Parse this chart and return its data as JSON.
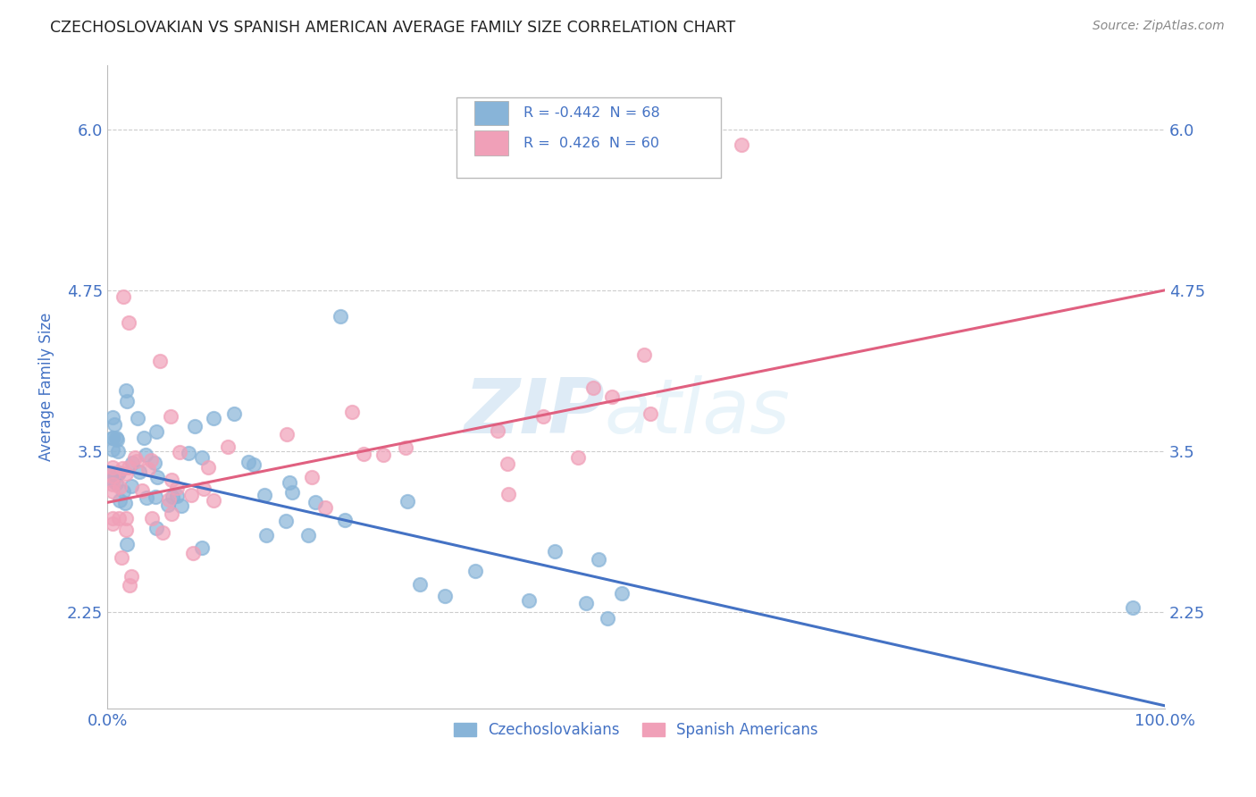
{
  "title": "CZECHOSLOVAKIAN VS SPANISH AMERICAN AVERAGE FAMILY SIZE CORRELATION CHART",
  "source": "Source: ZipAtlas.com",
  "ylabel": "Average Family Size",
  "xlabel": "",
  "xlim": [
    0.0,
    100.0
  ],
  "ylim": [
    1.5,
    6.5
  ],
  "yticks": [
    2.25,
    3.5,
    4.75,
    6.0
  ],
  "xticks": [
    0.0,
    100.0
  ],
  "xticklabels": [
    "0.0%",
    "100.0%"
  ],
  "blue_R": -0.442,
  "blue_N": 68,
  "pink_R": 0.426,
  "pink_N": 60,
  "blue_color": "#88b4d8",
  "pink_color": "#f0a0b8",
  "blue_line_color": "#4472c4",
  "pink_line_color": "#e06080",
  "axis_color": "#4472c4",
  "label_blue": "Czechoslovakians",
  "label_pink": "Spanish Americans",
  "watermark_zip": "ZIP",
  "watermark_atlas": "atlas",
  "background_color": "#ffffff",
  "grid_color": "#cccccc",
  "title_color": "#333333",
  "blue_line_start_y": 3.38,
  "blue_line_end_y": 1.52,
  "pink_line_start_y": 3.1,
  "pink_line_end_y": 4.75
}
